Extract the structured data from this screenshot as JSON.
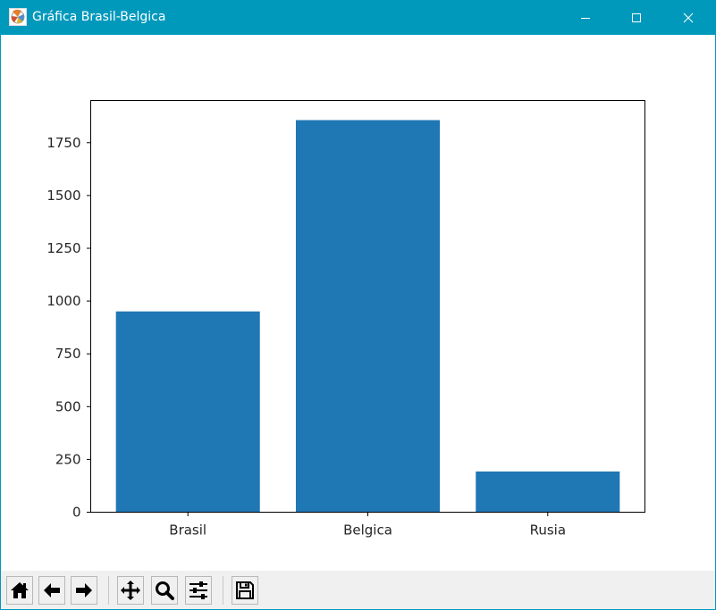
{
  "window": {
    "title": "Gráfica Brasil-Belgica"
  },
  "chart_data": {
    "type": "bar",
    "categories": [
      "Brasil",
      "Belgica",
      "Rusia"
    ],
    "values": [
      951,
      1857,
      193
    ],
    "title": "",
    "xlabel": "",
    "ylabel": "",
    "ylim": [
      0,
      1950
    ],
    "yticks": [
      0,
      250,
      500,
      750,
      1000,
      1250,
      1500,
      1750
    ],
    "ytick_labels": [
      "0",
      "250",
      "500",
      "750",
      "1000",
      "1250",
      "1500",
      "1750"
    ],
    "bar_color": "#1f77b4",
    "grid": false,
    "legend": "none"
  },
  "toolbar": {
    "buttons": [
      "home-icon",
      "back-arrow-icon",
      "forward-arrow-icon",
      "pan-icon",
      "zoom-icon",
      "configure-subplots-icon",
      "save-icon"
    ]
  }
}
